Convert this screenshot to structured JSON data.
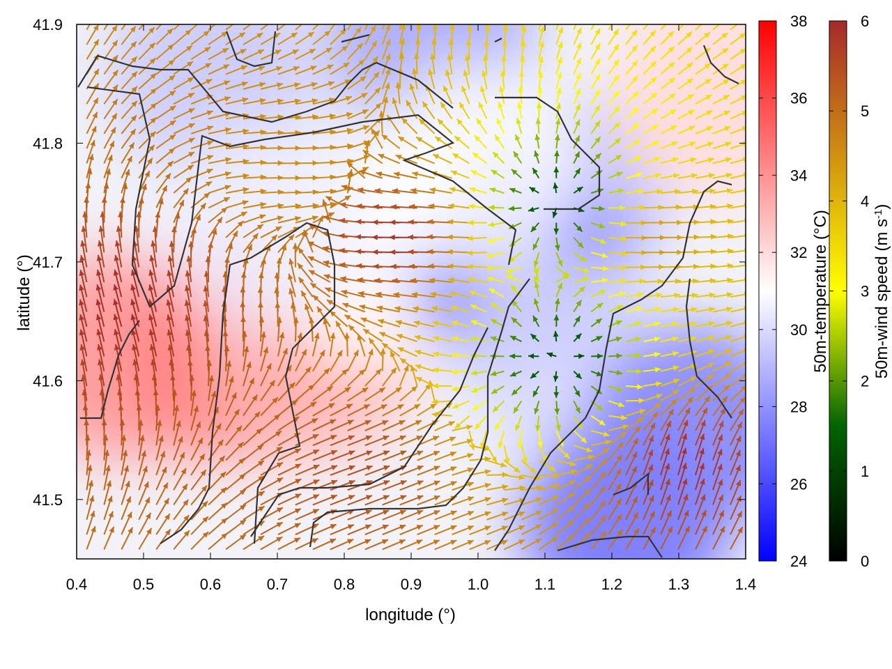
{
  "chart_data": {
    "type": "heatmap",
    "title": "",
    "xlabel": "longitude (°)",
    "ylabel": "latitude (°)",
    "xlim": [
      0.4,
      1.4
    ],
    "ylim": [
      41.45,
      41.9
    ],
    "x_ticks": [
      "0.4",
      "0.5",
      "0.6",
      "0.7",
      "0.8",
      "0.9",
      "1.0",
      "1.1",
      "1.2",
      "1.3",
      "1.4"
    ],
    "y_ticks": [
      "41.5",
      "41.6",
      "41.7",
      "41.8",
      "41.9"
    ],
    "grid": false,
    "temperature_colorbar": {
      "label": "50m-temperature (°C)",
      "range": [
        24,
        38
      ],
      "ticks": [
        "24",
        "26",
        "28",
        "30",
        "32",
        "34",
        "36",
        "38"
      ],
      "colors": [
        "#0000ff",
        "#ffffff",
        "#ff0000"
      ]
    },
    "wind_colorbar": {
      "label_main": "50m-wind speed (m s",
      "label_sup": "-1",
      "label_end": ")",
      "range": [
        0,
        6
      ],
      "ticks": [
        "0",
        "1",
        "2",
        "3",
        "4",
        "5",
        "6"
      ],
      "colors": [
        "#000000",
        "#006400",
        "#ffff00",
        "#d09010",
        "#a52a2a"
      ]
    },
    "temperature_field_regions": [
      {
        "lon": 0.47,
        "lat": 41.62,
        "temp": 34
      },
      {
        "lon": 0.63,
        "lat": 41.62,
        "temp": 34.5
      },
      {
        "lon": 0.75,
        "lat": 41.62,
        "temp": 33
      },
      {
        "lon": 0.85,
        "lat": 41.7,
        "temp": 31
      },
      {
        "lon": 1.12,
        "lat": 41.75,
        "temp": 29
      },
      {
        "lon": 1.06,
        "lat": 41.69,
        "temp": 27
      },
      {
        "lon": 1.13,
        "lat": 41.62,
        "temp": 30
      },
      {
        "lon": 1.22,
        "lat": 41.48,
        "temp": 27
      },
      {
        "lon": 1.32,
        "lat": 41.56,
        "temp": 27.5
      },
      {
        "lon": 0.6,
        "lat": 41.86,
        "temp": 29.5
      },
      {
        "lon": 0.93,
        "lat": 41.89,
        "temp": 28.5
      },
      {
        "lon": 1.35,
        "lat": 41.84,
        "temp": 32
      },
      {
        "lon": 1.0,
        "lat": 41.78,
        "temp": 31
      },
      {
        "lon": 0.68,
        "lat": 41.73,
        "temp": 30.5
      }
    ],
    "wind_vectors_summary": [
      {
        "lon": 0.48,
        "lat": 41.65,
        "direction": "north-northwest",
        "speed": 6
      },
      {
        "lon": 0.7,
        "lat": 41.78,
        "direction": "east",
        "speed": 4.5
      },
      {
        "lon": 0.9,
        "lat": 41.72,
        "direction": "west",
        "speed": 6
      },
      {
        "lon": 1.12,
        "lat": 41.75,
        "direction": "divergent",
        "speed": 1
      },
      {
        "lon": 1.12,
        "lat": 41.62,
        "direction": "divergent",
        "speed": 1
      },
      {
        "lon": 1.25,
        "lat": 41.72,
        "direction": "east",
        "speed": 4.5
      },
      {
        "lon": 0.8,
        "lat": 41.52,
        "direction": "east-northeast",
        "speed": 5.5
      },
      {
        "lon": 1.3,
        "lat": 41.52,
        "direction": "north-northeast",
        "speed": 6
      }
    ]
  }
}
